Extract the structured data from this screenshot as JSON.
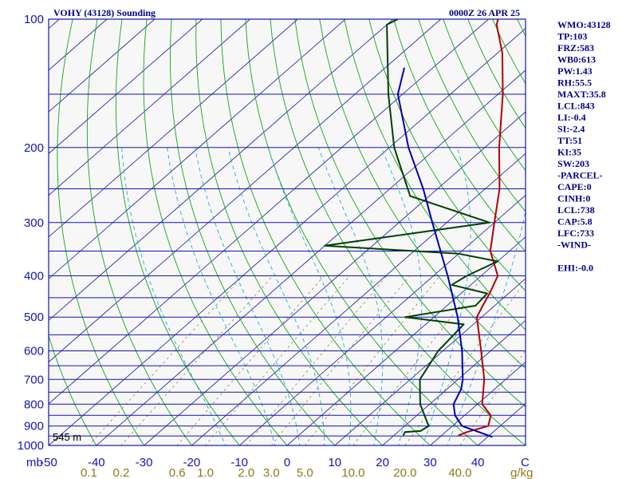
{
  "header": {
    "station_title": "VOHY (43128) Sounding",
    "valid_time": "0000Z 26 APR 25"
  },
  "height_label": "545 m",
  "stats": [
    "WMO:43128",
    "TP:103",
    "FRZ:583",
    "WB0:613",
    "PW:1.43",
    "RH:55.5",
    "MAXT:35.8",
    "LCL:843",
    "LI:-0.4",
    "SI:-2.4",
    "TT:51",
    "KI:35",
    "SW:203",
    "-PARCEL-",
    "CAPE:0",
    "CINH:0",
    "LCL:738",
    "CAP:5.8",
    "LFC:733",
    "-WIND-",
    "",
    "EHI:-0.0"
  ],
  "chart_data": {
    "type": "line",
    "title": "VOHY (43128) Sounding",
    "subtitle": "0000Z 26 APR 25",
    "y_axis": {
      "label": "mb",
      "scale": "log",
      "range": [
        1000,
        100
      ],
      "ticks": [
        100,
        200,
        300,
        400,
        500,
        600,
        700,
        800,
        900,
        1000
      ],
      "tick_labels": [
        "100",
        "200",
        "300",
        "400",
        "500",
        "600",
        "700",
        "800",
        "900",
        "1000"
      ],
      "isobar_levels": [
        100,
        150,
        200,
        250,
        300,
        350,
        400,
        450,
        500,
        550,
        600,
        650,
        700,
        750,
        800,
        850,
        900,
        950,
        1000
      ]
    },
    "x_axis": {
      "label": "C",
      "range_at_1000mb": [
        -50,
        50
      ],
      "ticks": [
        -50,
        -40,
        -30,
        -20,
        -10,
        0,
        10,
        20,
        30,
        40
      ],
      "tick_labels": [
        "-50",
        "-40",
        "-30",
        "-20",
        "-10",
        "0",
        "10",
        "20",
        "30",
        "40"
      ]
    },
    "mixing_ratio_axis": {
      "label": "g/kg",
      "values": [
        0.1,
        0.2,
        0.6,
        1.0,
        2.0,
        3.0,
        5.0,
        10.0,
        20.0,
        40.0
      ],
      "tick_labels": [
        "0.1",
        "0.2",
        "0.6",
        "1.0",
        "2.0",
        "3.0",
        "5.0",
        "10.0",
        "20.0",
        "40.0"
      ]
    },
    "skew": "skew-T log-P",
    "grid": true,
    "series": [
      {
        "key": "temperature",
        "color": "#b40000",
        "points": [
          [
            948,
            33.5
          ],
          [
            930,
            34.5
          ],
          [
            900,
            37.5
          ],
          [
            850,
            35.5
          ],
          [
            800,
            31
          ],
          [
            700,
            25.5
          ],
          [
            600,
            18
          ],
          [
            500,
            9
          ],
          [
            470,
            7.5
          ],
          [
            440,
            6
          ],
          [
            400,
            3.5
          ],
          [
            350,
            -4
          ],
          [
            300,
            -10
          ],
          [
            250,
            -17
          ],
          [
            200,
            -27
          ],
          [
            150,
            -39
          ],
          [
            120,
            -49
          ],
          [
            103,
            -57
          ],
          [
            100,
            -58
          ]
        ]
      },
      {
        "key": "dewpoint",
        "color": "#004000",
        "points": [
          [
            948,
            22
          ],
          [
            930,
            21.5
          ],
          [
            925,
            24.5
          ],
          [
            900,
            25
          ],
          [
            800,
            18
          ],
          [
            700,
            12
          ],
          [
            600,
            9
          ],
          [
            520,
            8
          ],
          [
            500,
            -6
          ],
          [
            470,
            6
          ],
          [
            440,
            5.5
          ],
          [
            420,
            -4
          ],
          [
            400,
            -3
          ],
          [
            370,
            0
          ],
          [
            355,
            -10
          ],
          [
            340,
            -40
          ],
          [
            300,
            -11
          ],
          [
            260,
            -34
          ],
          [
            200,
            -49
          ],
          [
            150,
            -63
          ],
          [
            103,
            -80
          ],
          [
            100,
            -79
          ]
        ]
      },
      {
        "key": "parcel",
        "color": "#0000aa",
        "points": [
          [
            955,
            41
          ],
          [
            930,
            37
          ],
          [
            900,
            32
          ],
          [
            850,
            28
          ],
          [
            800,
            25
          ],
          [
            738,
            23
          ],
          [
            700,
            21
          ],
          [
            600,
            14
          ],
          [
            500,
            5
          ],
          [
            400,
            -7
          ],
          [
            300,
            -23
          ],
          [
            250,
            -33
          ],
          [
            200,
            -46
          ],
          [
            150,
            -61
          ],
          [
            130,
            -66
          ]
        ]
      }
    ]
  },
  "colors": {
    "isobar": "#1515b0",
    "isotherm": "#2b2bb0",
    "dry_adiabat": "#17a317",
    "moist_adiabat": "#29a9d6",
    "mixing_ratio": "#8a8a5a",
    "temperature": "#b40000",
    "dewpoint": "#004000",
    "parcel": "#0000aa",
    "text": "#00008b"
  }
}
